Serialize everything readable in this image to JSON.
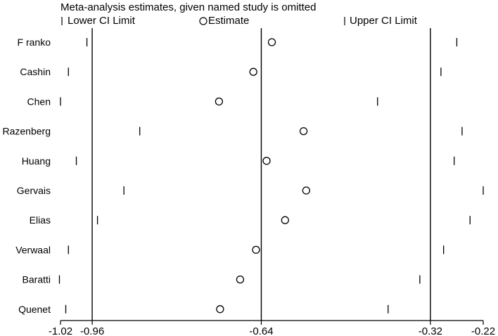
{
  "chart_data": {
    "type": "scatter",
    "title": "Meta-analysis estimates, given named study is omitted",
    "legend": {
      "lower": "Lower CI Limit",
      "estimate": "Estimate",
      "upper": "Upper CI Limit",
      "placement": "top"
    },
    "xlim": [
      -1.02,
      -0.22
    ],
    "x_ticks": [
      {
        "value": -1.02,
        "label": "-1.02"
      },
      {
        "value": -0.96,
        "label": "-0.96"
      },
      {
        "value": -0.64,
        "label": "-0.64"
      },
      {
        "value": -0.32,
        "label": "-0.32"
      },
      {
        "value": -0.22,
        "label": "-0.22"
      }
    ],
    "reference_lines": [
      -0.96,
      -0.64,
      -0.32
    ],
    "studies": [
      {
        "name": "F ranko",
        "lower": -0.97,
        "estimate": -0.62,
        "upper": -0.27
      },
      {
        "name": "Cashin",
        "lower": -1.005,
        "estimate": -0.655,
        "upper": -0.3
      },
      {
        "name": "Chen",
        "lower": -1.02,
        "estimate": -0.72,
        "upper": -0.42
      },
      {
        "name": "Razenberg",
        "lower": -0.87,
        "estimate": -0.56,
        "upper": -0.26
      },
      {
        "name": "Huang",
        "lower": -0.99,
        "estimate": -0.63,
        "upper": -0.275
      },
      {
        "name": "Gervais",
        "lower": -0.9,
        "estimate": -0.555,
        "upper": -0.22
      },
      {
        "name": "Elias",
        "lower": -0.95,
        "estimate": -0.595,
        "upper": -0.245
      },
      {
        "name": "Verwaal",
        "lower": -1.005,
        "estimate": -0.65,
        "upper": -0.295
      },
      {
        "name": "Baratti",
        "lower": -1.022,
        "estimate": -0.68,
        "upper": -0.34
      },
      {
        "name": "Quenet",
        "lower": -1.01,
        "estimate": -0.718,
        "upper": -0.4
      }
    ]
  }
}
